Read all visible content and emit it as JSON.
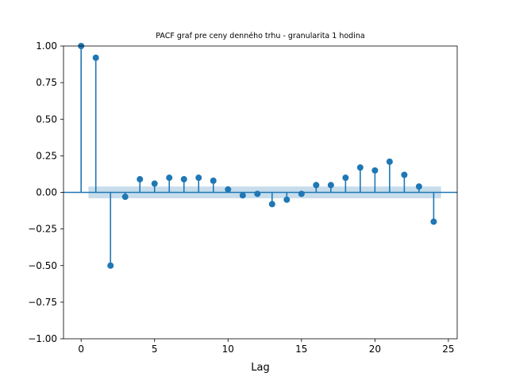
{
  "chart_data": {
    "type": "stem",
    "title": "PACF graf pre ceny denného trhu - granularita 1 hodina",
    "xlabel": "Lag",
    "ylabel": "",
    "xlim": [
      -1.2,
      25.6
    ],
    "ylim": [
      -1.0,
      1.0
    ],
    "xticks": [
      0,
      5,
      10,
      15,
      20,
      25
    ],
    "xtick_labels": [
      "0",
      "5",
      "10",
      "15",
      "20",
      "25"
    ],
    "yticks": [
      -1.0,
      -0.75,
      -0.5,
      -0.25,
      0.0,
      0.25,
      0.5,
      0.75,
      1.0
    ],
    "ytick_labels": [
      "−1.00",
      "−0.75",
      "−0.50",
      "−0.25",
      "0.00",
      "0.25",
      "0.50",
      "0.75",
      "1.00"
    ],
    "grid": false,
    "x": [
      0,
      1,
      2,
      3,
      4,
      5,
      6,
      7,
      8,
      9,
      10,
      11,
      12,
      13,
      14,
      15,
      16,
      17,
      18,
      19,
      20,
      21,
      22,
      23,
      24
    ],
    "values": [
      1.0,
      0.92,
      -0.5,
      -0.03,
      0.09,
      0.06,
      0.1,
      0.09,
      0.1,
      0.08,
      0.02,
      -0.02,
      -0.01,
      -0.08,
      -0.05,
      -0.01,
      0.05,
      0.05,
      0.1,
      0.17,
      0.15,
      0.21,
      0.12,
      0.04,
      -0.2
    ],
    "confidence_band": {
      "x": [
        0.5,
        24.5
      ],
      "lower": -0.04,
      "upper": 0.04
    },
    "colors": {
      "stem": "#1f77b4",
      "band": "#1f77b4",
      "baseline": "#1f77b4"
    }
  }
}
